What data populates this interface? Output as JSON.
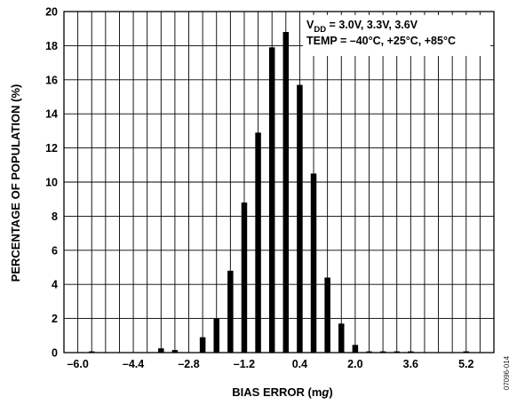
{
  "chart_data": {
    "type": "bar",
    "xlabel_prefix": "BIAS ERROR (m",
    "xlabel_unit": "g",
    "xlabel_suffix": ")",
    "ylabel": "PERCENTAGE OF POPULATION (%)",
    "xlim": [
      -6.4,
      6.0
    ],
    "ylim": [
      0,
      20
    ],
    "grid": true,
    "x_ticks": [
      -6.0,
      -4.4,
      -2.8,
      -1.2,
      0.4,
      2.0,
      3.6,
      5.2
    ],
    "x_tick_labels": [
      "–6.0",
      "–4.4",
      "–2.8",
      "–1.2",
      "0.4",
      "2.0",
      "3.6",
      "5.2"
    ],
    "y_ticks": [
      0,
      2,
      4,
      6,
      8,
      10,
      12,
      14,
      16,
      18,
      20
    ],
    "y_tick_labels": [
      "0",
      "2",
      "4",
      "6",
      "8",
      "10",
      "12",
      "14",
      "16",
      "18",
      "20"
    ],
    "x": [
      -6.0,
      -5.6,
      -5.2,
      -4.8,
      -4.4,
      -4.0,
      -3.6,
      -3.2,
      -2.8,
      -2.4,
      -2.0,
      -1.6,
      -1.2,
      -0.8,
      -0.4,
      0.0,
      0.4,
      0.8,
      1.2,
      1.6,
      2.0,
      2.4,
      2.8,
      3.2,
      3.6,
      4.0,
      4.4,
      4.8,
      5.2,
      5.6
    ],
    "values": [
      0,
      0.02,
      0,
      0,
      0,
      0,
      0.25,
      0.15,
      0,
      0.9,
      2.0,
      4.8,
      8.8,
      12.9,
      17.9,
      18.8,
      15.7,
      10.5,
      4.4,
      1.7,
      0.45,
      0.05,
      0.05,
      0.02,
      0.02,
      0,
      0,
      0,
      0.02,
      0
    ],
    "annotation": {
      "line1_prefix": "V",
      "line1_sub": "DD",
      "line1_rest": " = 3.0V, 3.3V, 3.6V",
      "line2": "TEMP = –40°C, +25°C, +85°C"
    },
    "figure_id": "07096-014"
  }
}
